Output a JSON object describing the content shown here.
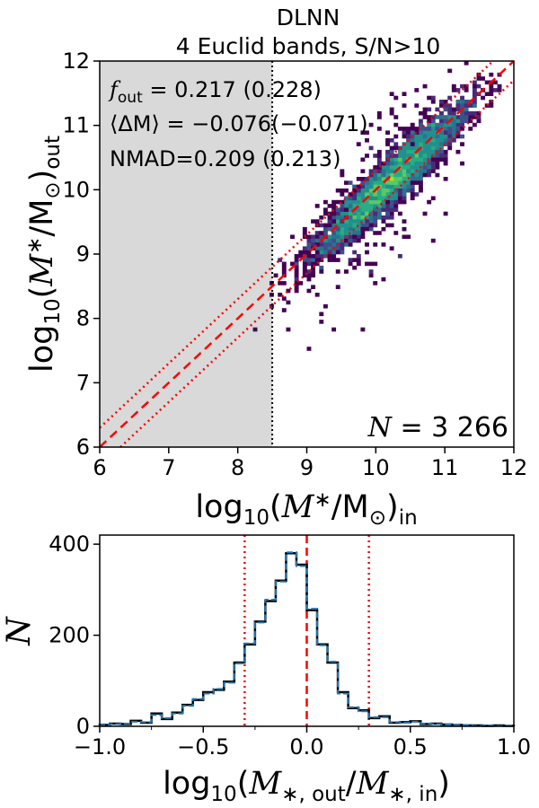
{
  "chart_data": [
    {
      "type": "heatmap",
      "title_line1": "DLNN",
      "title_line2": "4 Euclid bands, S/N>10",
      "xlim": [
        6,
        12
      ],
      "ylim": [
        6,
        12
      ],
      "xticks": [
        "6",
        "7",
        "8",
        "9",
        "10",
        "11",
        "12"
      ],
      "yticks": [
        "6",
        "7",
        "8",
        "9",
        "10",
        "11",
        "12"
      ],
      "xlabel": "log10(M*/M⊙)in",
      "ylabel": "log10(M*/M⊙)out",
      "xlabel_parts": {
        "pre": "log",
        "sub1": "10",
        "mid": "(",
        "mi": "M",
        "star": "∗",
        "slash": "/M",
        "sun": "⊙",
        "close": ")",
        "sub2": "in"
      },
      "ylabel_parts": {
        "pre": "log",
        "sub1": "10",
        "mid": "(",
        "mi": "M",
        "star": "∗",
        "slash": "/M",
        "sun": "⊙",
        "close": ")",
        "sub2": "out"
      },
      "shaded_region_x": [
        6,
        8.5
      ],
      "mass_limit_x": 8.5,
      "one_to_one_line": [
        [
          6,
          6
        ],
        [
          12,
          12
        ]
      ],
      "outlier_offset_dex": 0.3,
      "annotations": {
        "fout_label": "f",
        "fout_sub": "out",
        "fout_value": " = 0.217 (0.228)",
        "dm_label": "⟨ΔM⟩ = −0.076(−0.071)",
        "nmad": "NMAD=0.209 (0.213)",
        "count_label": "N",
        "count_value": " = 3 266"
      },
      "colormap": "viridis",
      "stats": {
        "f_out": 0.217,
        "f_out_alt": 0.228,
        "mean_dM": -0.076,
        "mean_dM_alt": -0.071,
        "nmad": 0.209,
        "nmad_alt": 0.213,
        "N": 3266
      }
    },
    {
      "type": "bar",
      "style": "step-histogram",
      "xlim": [
        -1.0,
        1.0
      ],
      "ylim": [
        0,
        420
      ],
      "xticks": [
        "−1.0",
        "−0.5",
        "0.0",
        "0.5",
        "1.0"
      ],
      "yticks": [
        "0",
        "200",
        "400"
      ],
      "ylabel": "N",
      "xlabel_parts": {
        "pre": "log",
        "sub1": "10",
        "open": "(",
        "m1": "M",
        "s1": "∗, out",
        "slash": "/",
        "m2": "M",
        "s2": "∗, in",
        "close": ")"
      },
      "bin_edges": [
        -1.0,
        -0.95,
        -0.9,
        -0.85,
        -0.8,
        -0.75,
        -0.7,
        -0.65,
        -0.6,
        -0.55,
        -0.5,
        -0.45,
        -0.4,
        -0.35,
        -0.3,
        -0.25,
        -0.2,
        -0.15,
        -0.1,
        -0.05,
        0.0,
        0.05,
        0.1,
        0.15,
        0.2,
        0.25,
        0.3,
        0.35,
        0.4,
        0.45,
        0.5,
        0.55,
        0.6,
        0.65,
        0.7,
        0.75,
        0.8,
        0.85,
        0.9,
        0.95,
        1.0
      ],
      "series": [
        {
          "name": "black",
          "values": [
            3,
            6,
            5,
            12,
            8,
            28,
            16,
            30,
            47,
            58,
            75,
            80,
            98,
            140,
            180,
            230,
            275,
            320,
            380,
            355,
            255,
            180,
            140,
            75,
            40,
            35,
            18,
            22,
            8,
            9,
            11,
            5,
            6,
            4,
            3,
            2,
            2,
            1,
            2,
            1
          ]
        },
        {
          "name": "blue",
          "values": [
            2,
            5,
            6,
            10,
            9,
            25,
            18,
            28,
            45,
            60,
            72,
            82,
            96,
            138,
            182,
            228,
            278,
            318,
            382,
            352,
            258,
            178,
            142,
            72,
            42,
            33,
            20,
            20,
            9,
            8,
            10,
            6,
            5,
            4,
            3,
            3,
            1,
            2,
            1,
            1
          ]
        }
      ],
      "mean_line_x": 0.0,
      "outlier_lines_x": [
        -0.3,
        0.3
      ]
    }
  ]
}
